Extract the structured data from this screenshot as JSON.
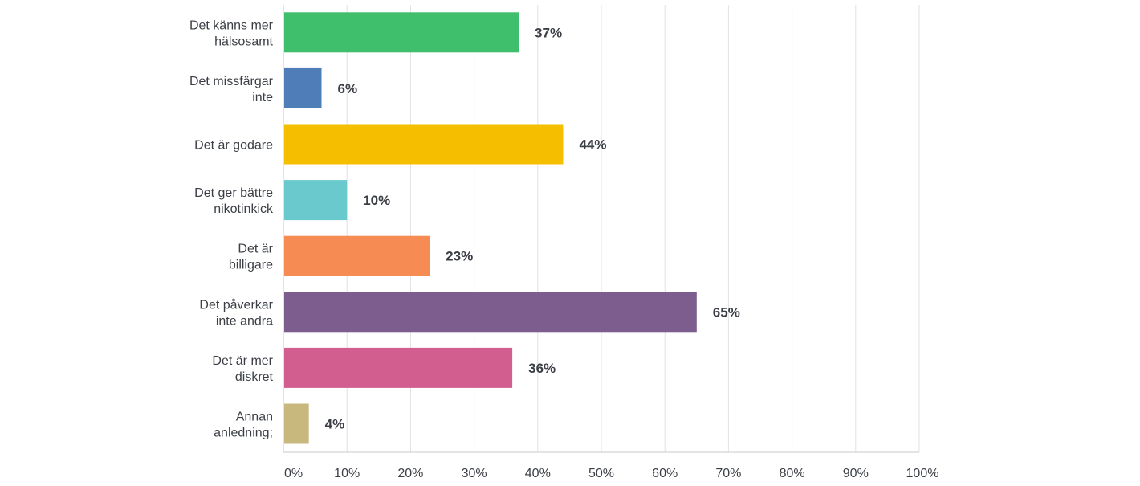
{
  "chart_data": {
    "type": "bar",
    "orientation": "horizontal",
    "categories": [
      [
        "Det känns mer",
        "hälsosamt"
      ],
      [
        "Det missfärgar",
        "inte"
      ],
      [
        "Det är godare"
      ],
      [
        "Det ger bättre",
        "nikotinkick"
      ],
      [
        "Det är",
        "billigare"
      ],
      [
        "Det påverkar",
        "inte andra"
      ],
      [
        "Det är mer",
        "diskret"
      ],
      [
        "Annan",
        "anledning;"
      ]
    ],
    "values": [
      37,
      6,
      44,
      10,
      23,
      65,
      36,
      4
    ],
    "value_labels": [
      "37%",
      "6%",
      "44%",
      "10%",
      "23%",
      "65%",
      "36%",
      "4%"
    ],
    "colors": [
      "#3fbf6b",
      "#4f7db7",
      "#f5bf00",
      "#6ac9cd",
      "#f68b53",
      "#7d5c8e",
      "#d15e8e",
      "#c8b87d"
    ],
    "xlim": [
      0,
      100
    ],
    "xticks": [
      "0%",
      "10%",
      "20%",
      "30%",
      "40%",
      "50%",
      "60%",
      "70%",
      "80%",
      "90%",
      "100%"
    ],
    "grid": true
  }
}
